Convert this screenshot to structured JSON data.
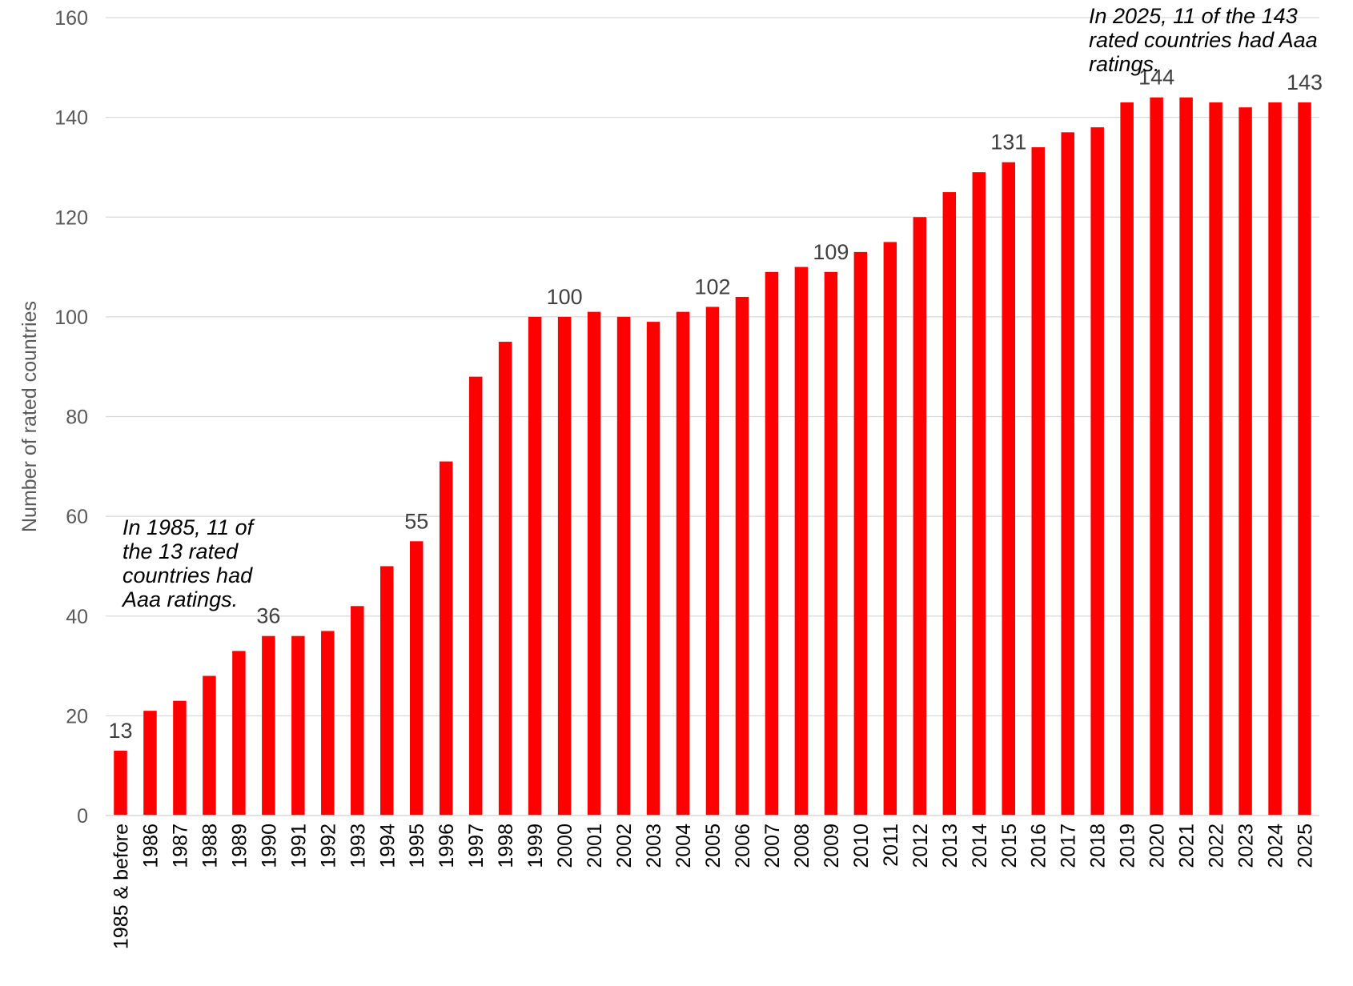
{
  "chart_data": {
    "type": "bar",
    "title": "",
    "xlabel": "",
    "ylabel": "Number of rated countries",
    "ylim": [
      0,
      160
    ],
    "yticks": [
      0,
      20,
      40,
      60,
      80,
      100,
      120,
      140,
      160
    ],
    "grid": true,
    "legend": "none",
    "color": "#ff0000",
    "categories": [
      "1985 & before",
      "1986",
      "1987",
      "1988",
      "1989",
      "1990",
      "1991",
      "1992",
      "1993",
      "1994",
      "1995",
      "1996",
      "1997",
      "1998",
      "1999",
      "2000",
      "2001",
      "2002",
      "2003",
      "2004",
      "2005",
      "2006",
      "2007",
      "2008",
      "2009",
      "2010",
      "2011",
      "2012",
      "2013",
      "2014",
      "2015",
      "2016",
      "2017",
      "2018",
      "2019",
      "2020",
      "2021",
      "2022",
      "2023",
      "2024",
      "2025"
    ],
    "values": [
      13,
      21,
      23,
      28,
      33,
      36,
      36,
      37,
      42,
      50,
      55,
      71,
      88,
      95,
      100,
      100,
      101,
      100,
      99,
      101,
      102,
      104,
      109,
      110,
      109,
      113,
      115,
      120,
      125,
      129,
      131,
      134,
      137,
      138,
      143,
      144,
      144,
      143,
      142,
      143,
      143
    ],
    "data_labels": [
      {
        "category": "1985 & before",
        "text": "13"
      },
      {
        "category": "1990",
        "text": "36"
      },
      {
        "category": "1995",
        "text": "55"
      },
      {
        "category": "2000",
        "text": "100"
      },
      {
        "category": "2005",
        "text": "102"
      },
      {
        "category": "2009",
        "text": "109"
      },
      {
        "category": "2015",
        "text": "131"
      },
      {
        "category": "2020",
        "text": "144"
      },
      {
        "category": "2025",
        "text": "143"
      }
    ],
    "annotations": [
      {
        "lines": [
          "In 1985, 11 of",
          "the 13 rated",
          "countries had",
          "Aaa ratings."
        ]
      },
      {
        "lines": [
          "In 2025, 11 of the 143",
          "rated countries had Aaa",
          "ratings."
        ]
      }
    ]
  }
}
